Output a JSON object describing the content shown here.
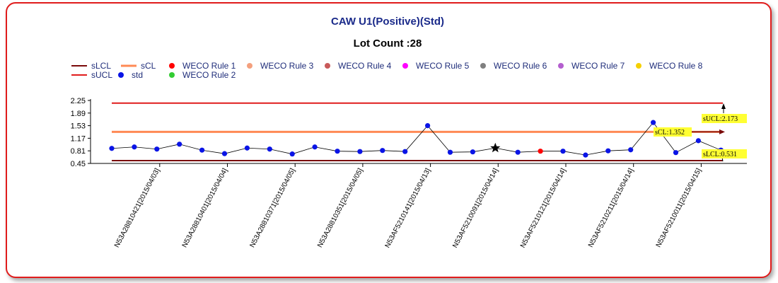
{
  "chart_data": {
    "type": "line",
    "title": "CAW U1(Positive)(Std)",
    "subtitle": "Lot Count :28",
    "ylim": [
      0.45,
      2.25
    ],
    "yticks": [
      "2.25",
      "1.89",
      "1.53",
      "1.17",
      "0.81",
      "0.45"
    ],
    "ytick_values": [
      2.25,
      1.89,
      1.53,
      1.17,
      0.81,
      0.45
    ],
    "xtick_labels": [
      "N53A28810421[2015/04/03]",
      "N53A28810401[2015/04/04]",
      "N53A28810371[2015/04/05]",
      "N53A28810351[2015/04/05]",
      "N53AF5210141[2015/04/13]",
      "N53AF5210091[2015/04/14]",
      "N53AF5210121[2015/04/14]",
      "N53AF5210211[2015/04/14]",
      "N53AF5210011[2015/04/15]"
    ],
    "xtick_positions": [
      2,
      5,
      8,
      11,
      14,
      17,
      20,
      23,
      26
    ],
    "control_limits": {
      "sUCL": 2.173,
      "sCL": 1.352,
      "sLCL": 0.531
    },
    "annotations": {
      "sUCL": "sUCL:2.173",
      "sCL": "sCL:1.352",
      "sLCL:": "sLCL:0.531"
    },
    "series": [
      {
        "name": "std",
        "color": "#0a14e6",
        "values": [
          0.88,
          0.92,
          0.86,
          1.0,
          0.83,
          0.73,
          0.89,
          0.86,
          0.72,
          0.92,
          0.8,
          0.79,
          0.82,
          0.79,
          1.53,
          0.77,
          0.78,
          0.89,
          0.77,
          0.8,
          0.8,
          0.69,
          0.81,
          0.84,
          1.62,
          0.76,
          1.1,
          0.83
        ],
        "rule1_indices": [
          19
        ],
        "star_index": 17
      }
    ],
    "legend": [
      {
        "label": "sLCL",
        "kind": "line",
        "color": "#7a0a0a"
      },
      {
        "label": "sCL",
        "kind": "line",
        "color": "#ff8a55"
      },
      {
        "label": "WECO Rule 1",
        "kind": "dot",
        "color": "#ff0000"
      },
      {
        "label": "WECO Rule 3",
        "kind": "dot",
        "color": "#f4a07e"
      },
      {
        "label": "WECO Rule 4",
        "kind": "dot",
        "color": "#c85a5a"
      },
      {
        "label": "WECO Rule 5",
        "kind": "dot",
        "color": "#ff00ff"
      },
      {
        "label": "WECO Rule 6",
        "kind": "dot",
        "color": "#808080"
      },
      {
        "label": "WECO Rule 7",
        "kind": "dot",
        "color": "#b45fcf"
      },
      {
        "label": "WECO Rule 8",
        "kind": "dot",
        "color": "#f5d000"
      },
      {
        "label": "sUCL",
        "kind": "line",
        "color": "#e01c1c"
      },
      {
        "label": "std",
        "kind": "dot",
        "color": "#0a14e6"
      },
      {
        "label": "WECO Rule 2",
        "kind": "dot",
        "color": "#33cc33"
      }
    ],
    "colors": {
      "sUCL": "#e01c1c",
      "sCL": "#ff8a55",
      "sLCL": "#7a0a0a",
      "annotation_bg": "#ffff33"
    }
  }
}
